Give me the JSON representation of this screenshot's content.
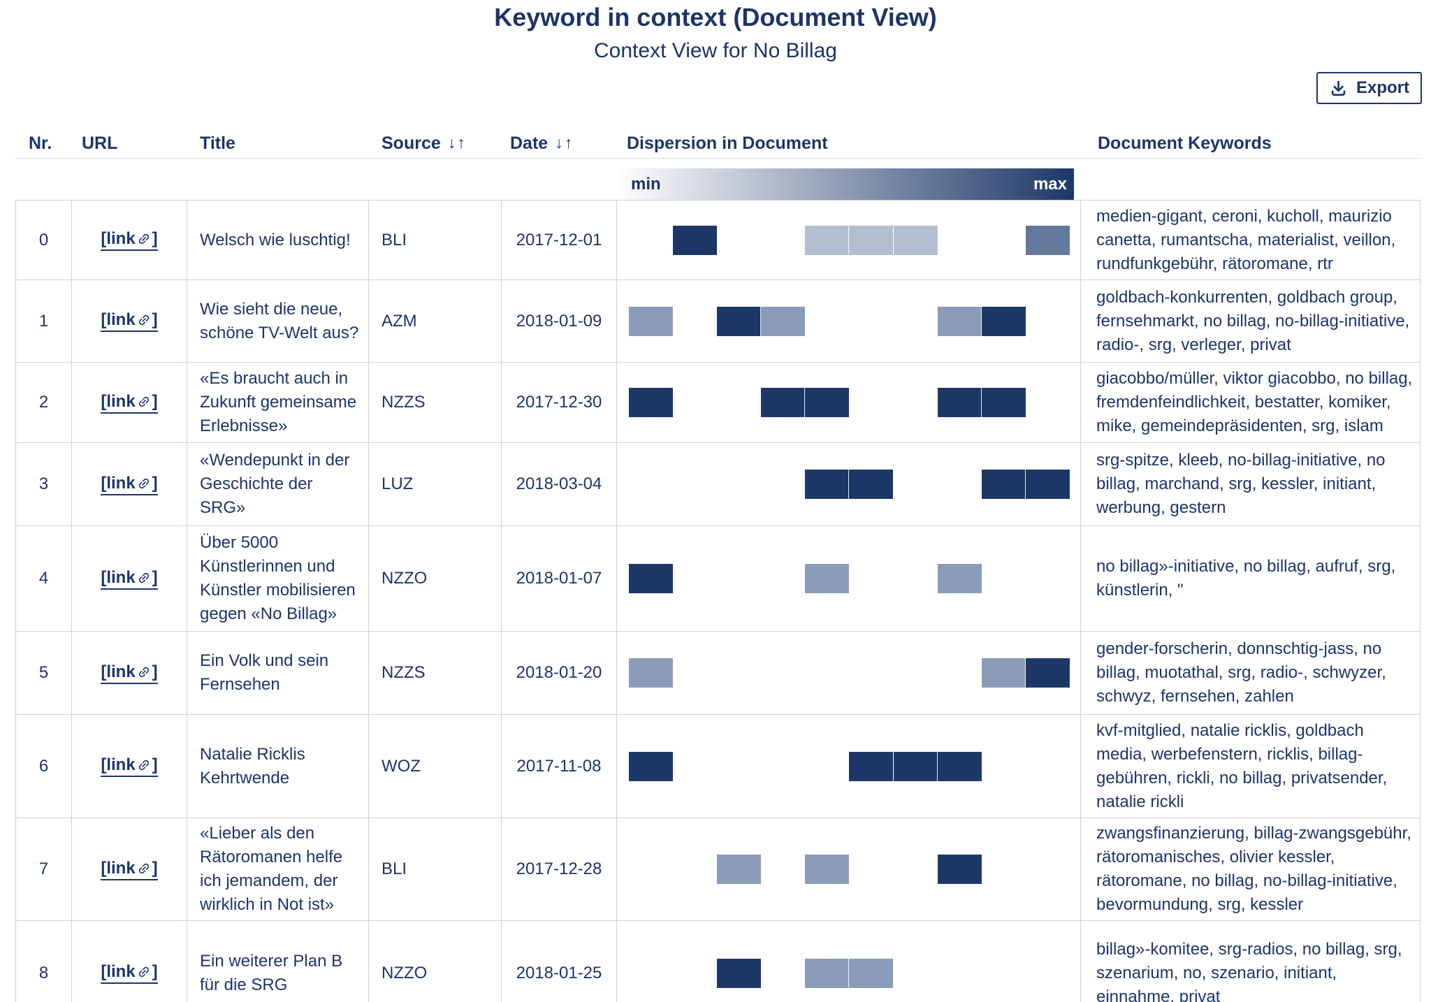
{
  "page": {
    "title": "Keyword in context (Document View)",
    "subtitle": "Context View for No Billag",
    "export_label": "Export"
  },
  "legend": {
    "min_label": "min",
    "max_label": "max"
  },
  "icons": {
    "sort_glyph": "↓↑"
  },
  "colors": {
    "accent_navy": "#1c3569",
    "table_border": "#c9d1e1",
    "dispersion_levels": {
      "low": "#b3bfd1",
      "mid": "#8b9cb8",
      "high": "#64789b",
      "max": "#1d3767"
    },
    "gradient_start": "#ffffff",
    "gradient_end": "#1d3767"
  },
  "table": {
    "headers": {
      "nr": "Nr.",
      "url": "URL",
      "title": "Title",
      "source": "Source",
      "date": "Date",
      "dispersion": "Dispersion in Document",
      "keywords": "Document Keywords"
    },
    "link_open": "[link",
    "link_close": "]",
    "rows": [
      {
        "nr": "0",
        "title": "Welsch wie luschtig!",
        "source": "BLI",
        "date": "2017-12-01",
        "keywords": "medien-gigant, ceroni, kucholl, maurizio canetta, rumantscha, materialist, veillon, rundfunkgebühr, rätoromane, rtr",
        "dispersion": [
          {
            "seg": 1,
            "level": "max"
          },
          {
            "seg": 4,
            "level": "low"
          },
          {
            "seg": 5,
            "level": "low"
          },
          {
            "seg": 6,
            "level": "low"
          },
          {
            "seg": 9,
            "level": "high"
          }
        ]
      },
      {
        "nr": "1",
        "title": "Wie sieht die neue, schöne TV-Welt aus?",
        "source": "AZM",
        "date": "2018-01-09",
        "keywords": "goldbach-konkurrenten, goldbach group, fernsehmarkt, no billag, no-billag-initiative, radio-, srg, verleger, privat",
        "dispersion": [
          {
            "seg": 0,
            "level": "mid"
          },
          {
            "seg": 2,
            "level": "max"
          },
          {
            "seg": 3,
            "level": "mid"
          },
          {
            "seg": 7,
            "level": "mid"
          },
          {
            "seg": 8,
            "level": "max"
          }
        ]
      },
      {
        "nr": "2",
        "title": "«Es braucht auch in Zukunft gemeinsame Erlebnisse»",
        "source": "NZZS",
        "date": "2017-12-30",
        "keywords": "giacobbo/müller, viktor giacobbo, no billag, fremdenfeindlichkeit, bestatter, komiker, mike, gemeindepräsidenten, srg, islam",
        "dispersion": [
          {
            "seg": 0,
            "level": "max"
          },
          {
            "seg": 3,
            "level": "max"
          },
          {
            "seg": 4,
            "level": "max"
          },
          {
            "seg": 7,
            "level": "max"
          },
          {
            "seg": 8,
            "level": "max"
          }
        ]
      },
      {
        "nr": "3",
        "title": "«Wendepunkt in der Geschichte der SRG»",
        "source": "LUZ",
        "date": "2018-03-04",
        "keywords": "srg-spitze, kleeb, no-billag-initiative, no billag, marchand, srg, kessler, initiant, werbung, gestern",
        "dispersion": [
          {
            "seg": 4,
            "level": "max"
          },
          {
            "seg": 5,
            "level": "max"
          },
          {
            "seg": 8,
            "level": "max"
          },
          {
            "seg": 9,
            "level": "max"
          }
        ]
      },
      {
        "nr": "4",
        "title": "Über 5000 Künstlerinnen und Künstler mobilisieren gegen «No Billag»",
        "source": "NZZO",
        "date": "2018-01-07",
        "keywords": "no billag»-initiative, no billag, aufruf, srg, künstlerin, \"",
        "dispersion": [
          {
            "seg": 0,
            "level": "max"
          },
          {
            "seg": 4,
            "level": "mid"
          },
          {
            "seg": 7,
            "level": "mid"
          }
        ]
      },
      {
        "nr": "5",
        "title": "Ein Volk und sein Fernsehen",
        "source": "NZZS",
        "date": "2018-01-20",
        "keywords": "gender-forscherin, donnschtig-jass, no billag, muotathal, srg, radio-, schwyzer, schwyz, fernsehen, zahlen",
        "dispersion": [
          {
            "seg": 0,
            "level": "mid"
          },
          {
            "seg": 8,
            "level": "mid"
          },
          {
            "seg": 9,
            "level": "max"
          }
        ]
      },
      {
        "nr": "6",
        "title": "Natalie Ricklis Kehrtwende",
        "source": "WOZ",
        "date": "2017-11-08",
        "keywords": "kvf-mitglied, natalie ricklis, goldbach media, werbefenstern, ricklis, billag-gebühren, rickli, no billag, privatsender, natalie rickli",
        "dispersion": [
          {
            "seg": 0,
            "level": "max"
          },
          {
            "seg": 5,
            "level": "max"
          },
          {
            "seg": 6,
            "level": "max"
          },
          {
            "seg": 7,
            "level": "max"
          }
        ]
      },
      {
        "nr": "7",
        "title": "«Lieber als den Rätoromanen helfe ich jemandem, der wirklich in Not ist»",
        "source": "BLI",
        "date": "2017-12-28",
        "keywords": "zwangsfinanzierung, billag-zwangsgebühr, rätoromanisches, olivier kessler, rätoromane, no billag, no-billag-initiative, bevormundung, srg, kessler",
        "dispersion": [
          {
            "seg": 2,
            "level": "mid"
          },
          {
            "seg": 4,
            "level": "mid"
          },
          {
            "seg": 7,
            "level": "max"
          }
        ]
      },
      {
        "nr": "8",
        "title": "Ein weiterer Plan B für die SRG",
        "source": "NZZO",
        "date": "2018-01-25",
        "keywords": "billag»-komitee, srg-radios, no billag, srg, szenarium, no, szenario, initiant, einnahme, privat",
        "dispersion": [
          {
            "seg": 2,
            "level": "max"
          },
          {
            "seg": 4,
            "level": "mid"
          },
          {
            "seg": 5,
            "level": "mid"
          }
        ]
      }
    ]
  }
}
